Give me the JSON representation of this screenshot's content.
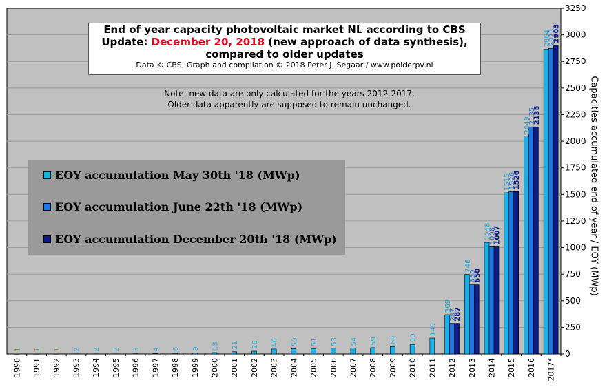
{
  "chart_data": {
    "type": "bar",
    "title_line1": "End of year capacity photovoltaic market NL according to CBS",
    "title_line2_prefix": "Update: ",
    "title_line2_highlight": "December 20, 2018",
    "title_line2_suffix": " (new approach of data synthesis),",
    "title_line3": "compared to older updates",
    "credit": "Data © CBS; Graph and compilation © 2018 Peter J. Segaar / www.polderpv.nl",
    "note_line1": "Note: new data are only calculated for the years 2012-2017.",
    "note_line2": "Older data apparently are supposed to remain unchanged.",
    "ylabel": "Capacities accumulated end of year / EOY (MWp)",
    "ylim": [
      0,
      3250
    ],
    "yticks": [
      0,
      250,
      500,
      750,
      1000,
      1250,
      1500,
      1750,
      2000,
      2250,
      2500,
      2750,
      3000,
      3250
    ],
    "grid": true,
    "legend_position": "left-middle",
    "categories": [
      "1990",
      "1991",
      "1992",
      "1993",
      "1994",
      "1995",
      "1996",
      "1997",
      "1998",
      "1999",
      "2000",
      "2001",
      "2002",
      "2003",
      "2004",
      "2005",
      "2006",
      "2007",
      "2008",
      "2009",
      "2010",
      "2011",
      "2012",
      "2013",
      "2014",
      "2015",
      "2016",
      "2017*"
    ],
    "series": [
      {
        "name": "EOY accumulation May 30th '18 (MWp)",
        "color": "#1ab0e8",
        "label_color": "#29a8d8",
        "values": [
          1,
          1,
          1,
          2,
          2,
          2,
          3,
          4,
          6,
          9,
          13,
          21,
          26,
          46,
          50,
          51,
          53,
          54,
          59,
          69,
          90,
          149,
          369,
          746,
          1048,
          1515,
          2049,
          2864
        ]
      },
      {
        "name": "EOY accumulation June 22th '18 (MWp)",
        "color": "#1e78e0",
        "label_color": "#1e6fd0",
        "values": [
          null,
          null,
          null,
          null,
          null,
          null,
          null,
          null,
          null,
          null,
          null,
          null,
          null,
          null,
          null,
          null,
          null,
          null,
          null,
          null,
          null,
          null,
          287,
          650,
          1008,
          1526,
          2135,
          2873
        ]
      },
      {
        "name": "EOY accumulation December 20th '18 (MWp)",
        "color": "#0c1a88",
        "label_color": "#0c1a88",
        "values": [
          null,
          null,
          null,
          null,
          null,
          null,
          null,
          null,
          null,
          null,
          null,
          null,
          null,
          null,
          null,
          null,
          null,
          null,
          null,
          null,
          null,
          null,
          287,
          650,
          1007,
          1526,
          2135,
          2903
        ]
      }
    ]
  }
}
